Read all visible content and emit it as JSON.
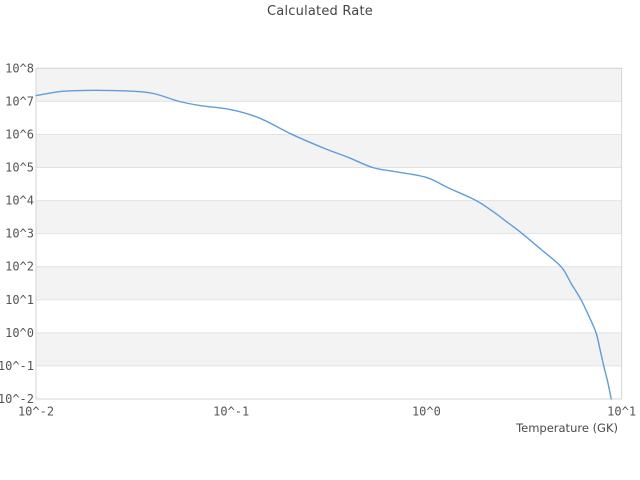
{
  "chart_data": {
    "type": "line",
    "title": "Calculated Rate",
    "xlabel": "Temperature (GK)",
    "ylabel": "",
    "x_scale": "log",
    "y_scale": "log",
    "xlim": [
      0.01,
      10
    ],
    "ylim": [
      0.01,
      100000000
    ],
    "grid": "horizontal-decade-lines-with-alternating-bands",
    "legend": "none",
    "x_ticks": [
      {
        "label": "10^-2",
        "value": 0.01
      },
      {
        "label": "10^-1",
        "value": 0.1
      },
      {
        "label": "10^0",
        "value": 1
      },
      {
        "label": "10^1",
        "value": 10
      }
    ],
    "y_ticks": [
      {
        "label": "10^8",
        "value": 100000000
      },
      {
        "label": "10^7",
        "value": 10000000
      },
      {
        "label": "10^6",
        "value": 1000000
      },
      {
        "label": "10^5",
        "value": 100000
      },
      {
        "label": "10^4",
        "value": 10000
      },
      {
        "label": "10^3",
        "value": 1000
      },
      {
        "label": "10^2",
        "value": 100
      },
      {
        "label": "10^1",
        "value": 10
      },
      {
        "label": "10^0",
        "value": 1
      },
      {
        "label": "10^-1",
        "value": 0.1
      },
      {
        "label": "10^-2",
        "value": 0.01
      }
    ],
    "colors": {
      "line": "#5f9ed8",
      "band": "#f3f3f3",
      "gridline": "#e2e2e2",
      "border": "#d6d6d6",
      "tick_text": "#555555",
      "title_text": "#444444"
    },
    "series": [
      {
        "name": "calculated_rate",
        "points": [
          [
            0.01,
            15000000
          ],
          [
            0.013,
            19500000
          ],
          [
            0.016,
            21000000
          ],
          [
            0.02,
            21600000
          ],
          [
            0.025,
            21200000
          ],
          [
            0.03,
            20500000
          ],
          [
            0.04,
            17300000
          ],
          [
            0.054,
            10000000
          ],
          [
            0.07,
            7400000
          ],
          [
            0.1,
            5600000
          ],
          [
            0.14,
            3100000
          ],
          [
            0.205,
            1000000
          ],
          [
            0.3,
            380000
          ],
          [
            0.4,
            200000
          ],
          [
            0.53,
            100000
          ],
          [
            0.7,
            74000
          ],
          [
            1.0,
            50000
          ],
          [
            1.3,
            24000
          ],
          [
            1.8,
            10000
          ],
          [
            2.2,
            4600
          ],
          [
            2.6,
            2200
          ],
          [
            3.1,
            1000
          ],
          [
            3.9,
            320
          ],
          [
            4.9,
            100
          ],
          [
            5.5,
            32
          ],
          [
            6.2,
            10
          ],
          [
            6.8,
            3.2
          ],
          [
            7.4,
            1.0
          ],
          [
            7.75,
            0.32
          ],
          [
            8.1,
            0.1
          ],
          [
            8.5,
            0.032
          ],
          [
            8.85,
            0.01
          ]
        ]
      }
    ]
  }
}
